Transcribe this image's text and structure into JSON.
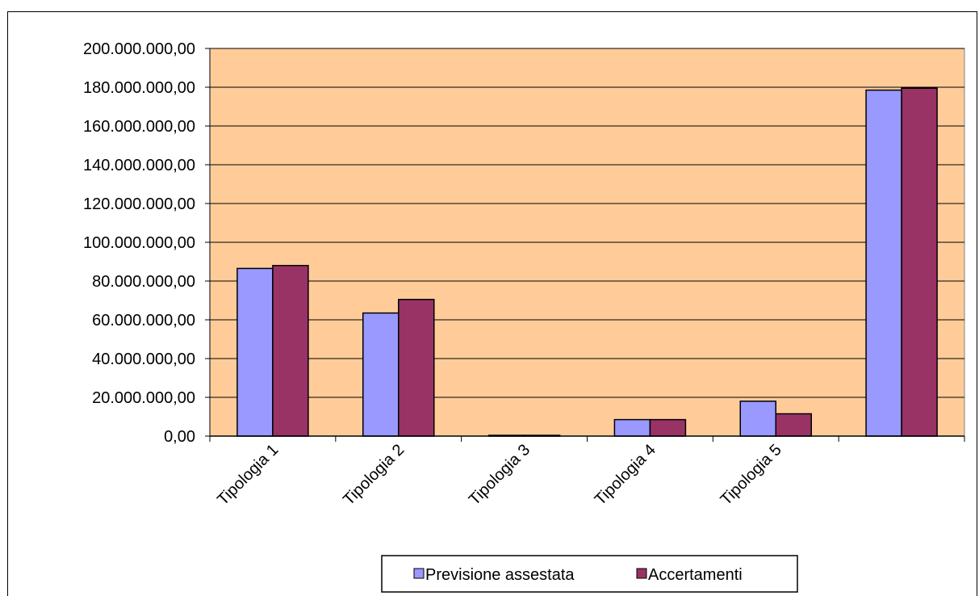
{
  "chart_data": {
    "type": "bar",
    "categories": [
      "Tipologia 1",
      "Tipologia 2",
      "Tipologia 3",
      "Tipologia 4",
      "Tipologia 5",
      ""
    ],
    "series": [
      {
        "name": "Previsione assestata",
        "values": [
          86500000,
          63500000,
          400000,
          8500000,
          18000000,
          178500000
        ]
      },
      {
        "name": "Accertamenti",
        "values": [
          88000000,
          70500000,
          400000,
          8500000,
          11500000,
          179500000
        ]
      }
    ],
    "ylim": [
      0,
      200000000
    ],
    "yticks": [
      "0,00",
      "20.000.000,00",
      "40.000.000,00",
      "60.000.000,00",
      "80.000.000,00",
      "100.000.000,00",
      "120.000.000,00",
      "140.000.000,00",
      "160.000.000,00",
      "180.000.000,00",
      "200.000.000,00"
    ],
    "grid": true,
    "legend_position": "bottom",
    "colors": {
      "plot_background": "#FFCC99",
      "Previsione assestata": "#9999FF",
      "Accertamenti": "#993366"
    }
  }
}
